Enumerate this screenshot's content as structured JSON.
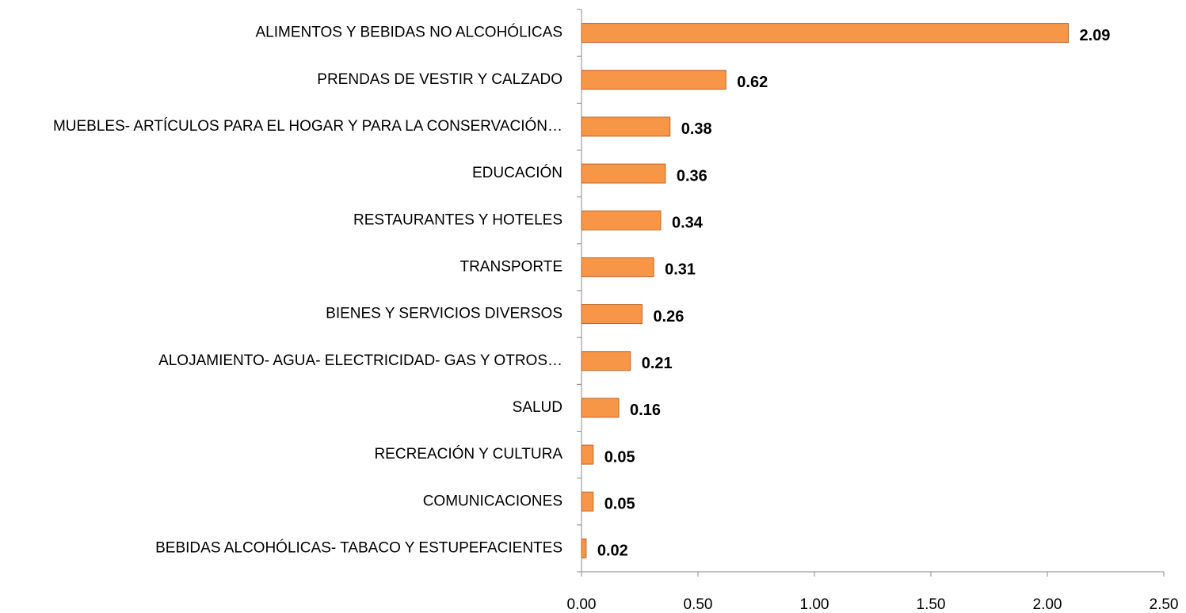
{
  "chart_data": {
    "type": "bar",
    "orientation": "horizontal",
    "categories": [
      "ALIMENTOS Y BEBIDAS NO ALCOHÓLICAS",
      "PRENDAS DE VESTIR Y CALZADO",
      "MUEBLES- ARTÍCULOS PARA EL HOGAR Y PARA LA CONSERVACIÓN…",
      "EDUCACIÓN",
      "RESTAURANTES Y HOTELES",
      "TRANSPORTE",
      "BIENES Y SERVICIOS DIVERSOS",
      "ALOJAMIENTO- AGUA- ELECTRICIDAD- GAS Y OTROS…",
      "SALUD",
      "RECREACIÓN Y CULTURA",
      "COMUNICACIONES",
      "BEBIDAS ALCOHÓLICAS- TABACO Y ESTUPEFACIENTES"
    ],
    "values": [
      2.09,
      0.62,
      0.38,
      0.36,
      0.34,
      0.31,
      0.26,
      0.21,
      0.16,
      0.05,
      0.05,
      0.02
    ],
    "color": "#f79646",
    "xlim": [
      0,
      2.5
    ],
    "xticks": [
      {
        "value": 0,
        "label": "0.00"
      },
      {
        "value": 0.5,
        "label": "0.50"
      },
      {
        "value": 1,
        "label": "1.00"
      },
      {
        "value": 1.5,
        "label": "1.50"
      },
      {
        "value": 2,
        "label": "2.00"
      },
      {
        "value": 2.5,
        "label": "2.50"
      }
    ]
  }
}
